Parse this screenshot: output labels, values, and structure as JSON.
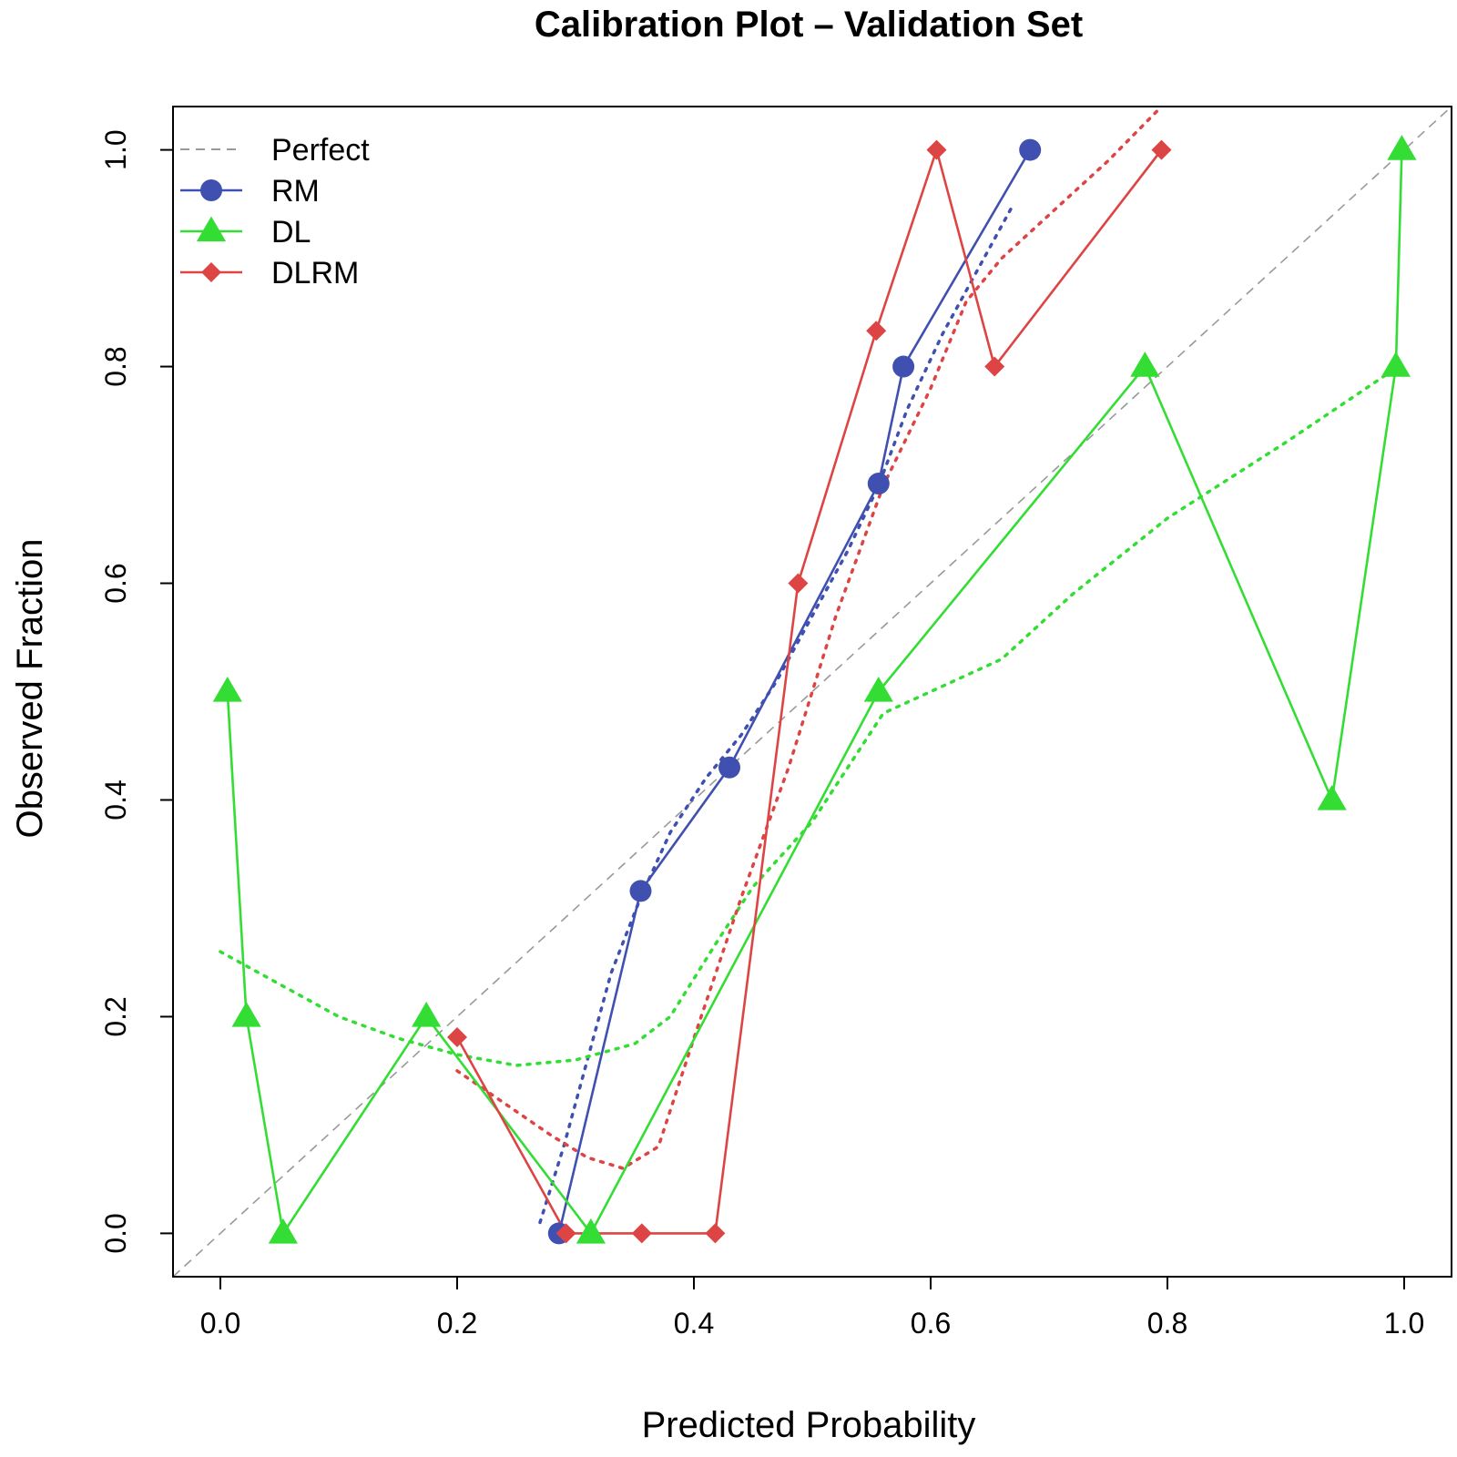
{
  "chart_data": {
    "type": "line",
    "title": "Calibration Plot – Validation Set",
    "xlabel": "Predicted Probability",
    "ylabel": "Observed Fraction",
    "xlim": [
      -0.04,
      1.04
    ],
    "ylim": [
      -0.04,
      1.04
    ],
    "xticks": [
      0.0,
      0.2,
      0.4,
      0.6,
      0.8,
      1.0
    ],
    "yticks": [
      0.0,
      0.2,
      0.4,
      0.6,
      0.8,
      1.0
    ],
    "xtick_labels": [
      "0.0",
      "0.2",
      "0.4",
      "0.6",
      "0.8",
      "1.0"
    ],
    "ytick_labels": [
      "0.0",
      "0.2",
      "0.4",
      "0.6",
      "0.8",
      "1.0"
    ],
    "legend_position": "top-left",
    "reference_line": {
      "name": "Perfect",
      "color": "#999999",
      "x": [
        -0.04,
        1.04
      ],
      "y": [
        -0.04,
        1.04
      ]
    },
    "series": [
      {
        "name": "RM",
        "color": "#4050B0",
        "marker": "circle",
        "x": [
          0.286,
          0.355,
          0.43,
          0.556,
          0.577,
          0.684
        ],
        "y": [
          0.0,
          0.316,
          0.43,
          0.692,
          0.8,
          1.0
        ],
        "smooth_x": [
          0.27,
          0.29,
          0.31,
          0.33,
          0.355,
          0.38,
          0.41,
          0.44,
          0.47,
          0.5,
          0.53,
          0.556,
          0.58,
          0.61,
          0.64,
          0.67
        ],
        "smooth_y": [
          0.01,
          0.08,
          0.16,
          0.24,
          0.31,
          0.37,
          0.42,
          0.46,
          0.51,
          0.57,
          0.63,
          0.69,
          0.76,
          0.83,
          0.89,
          0.95
        ]
      },
      {
        "name": "DL",
        "color": "#33DD33",
        "marker": "triangle",
        "x": [
          0.006,
          0.022,
          0.053,
          0.174,
          0.313,
          0.556,
          0.781,
          0.939,
          0.993,
          0.998
        ],
        "y": [
          0.5,
          0.2,
          0.0,
          0.2,
          0.0,
          0.5,
          0.8,
          0.4,
          0.8,
          1.0
        ],
        "smooth_x": [
          0.0,
          0.05,
          0.1,
          0.15,
          0.2,
          0.25,
          0.3,
          0.35,
          0.38,
          0.42,
          0.45,
          0.5,
          0.56,
          0.6,
          0.66,
          0.72,
          0.8,
          0.9,
          0.995
        ],
        "smooth_y": [
          0.26,
          0.23,
          0.2,
          0.18,
          0.165,
          0.155,
          0.16,
          0.175,
          0.2,
          0.27,
          0.32,
          0.38,
          0.48,
          0.5,
          0.53,
          0.59,
          0.66,
          0.73,
          0.8
        ]
      },
      {
        "name": "DLRM",
        "color": "#DD4444",
        "marker": "diamond",
        "x": [
          0.2,
          0.292,
          0.356,
          0.418,
          0.488,
          0.554,
          0.605,
          0.654,
          0.795
        ],
        "y": [
          0.181,
          0.0,
          0.0,
          0.0,
          0.6,
          0.833,
          1.0,
          0.8,
          1.0
        ],
        "smooth_x": [
          0.2,
          0.24,
          0.28,
          0.31,
          0.34,
          0.37,
          0.4,
          0.44,
          0.48,
          0.52,
          0.56,
          0.6,
          0.63,
          0.66,
          0.7,
          0.75,
          0.795
        ],
        "smooth_y": [
          0.15,
          0.12,
          0.09,
          0.07,
          0.06,
          0.08,
          0.18,
          0.31,
          0.43,
          0.57,
          0.69,
          0.78,
          0.86,
          0.9,
          0.94,
          0.99,
          1.04
        ]
      }
    ]
  }
}
